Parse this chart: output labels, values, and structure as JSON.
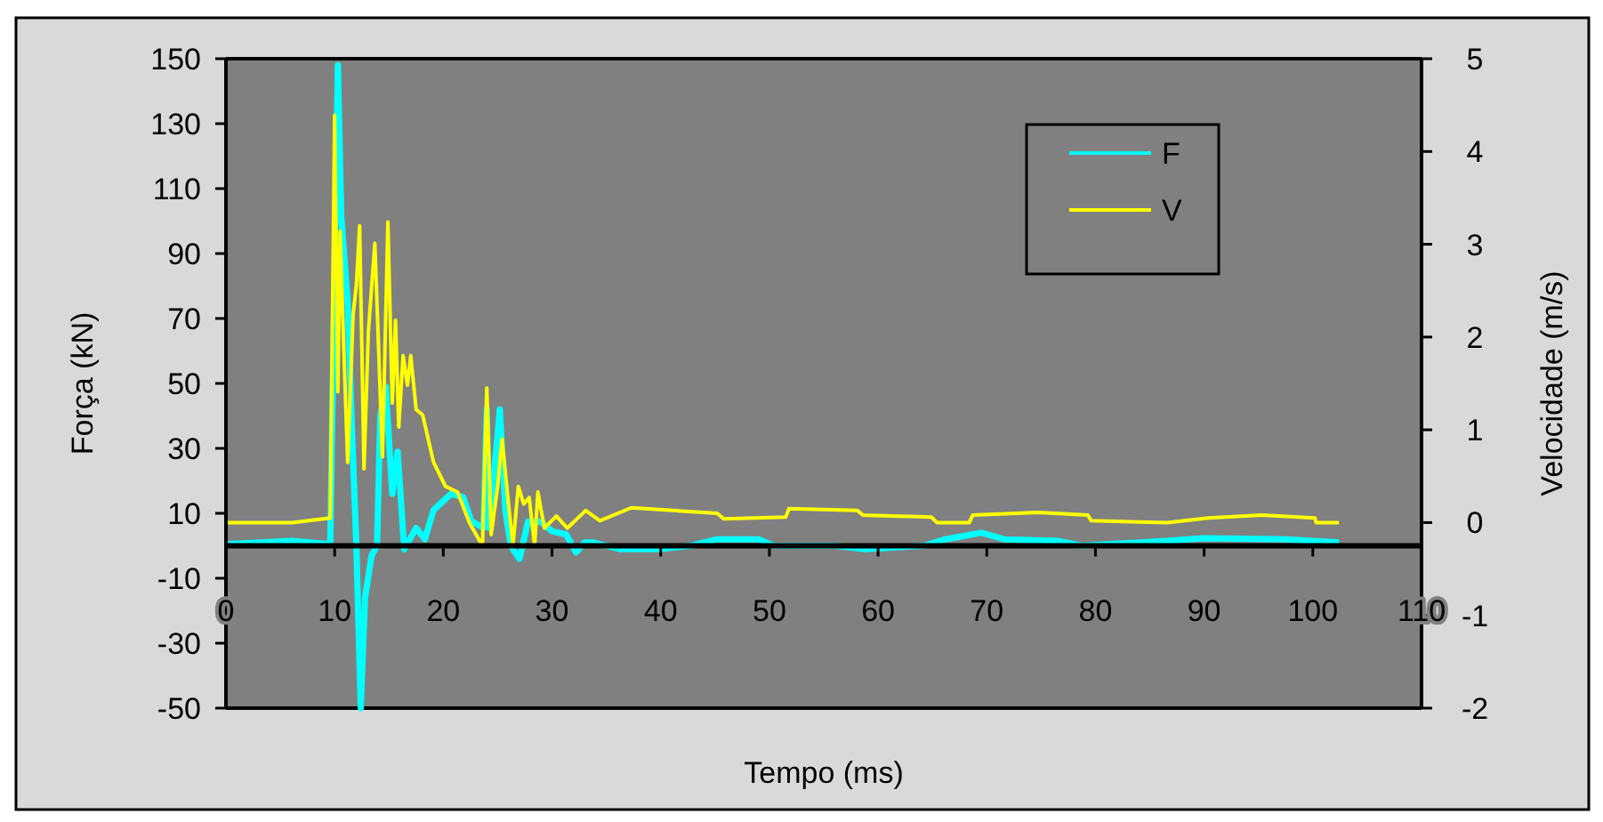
{
  "chart_data": {
    "type": "line",
    "xlabel": "Tempo (ms)",
    "ylabel": "Força (kN)",
    "y2label": "Velocidade (m/s)",
    "xlim": [
      0,
      110
    ],
    "xticks": [
      0,
      10,
      20,
      30,
      40,
      50,
      60,
      70,
      80,
      90,
      100,
      110
    ],
    "ylim": [
      -50,
      150
    ],
    "yticks": [
      -50,
      -30,
      -10,
      10,
      30,
      50,
      70,
      90,
      110,
      130,
      150
    ],
    "y2lim": [
      -2,
      5
    ],
    "y2ticks": [
      -2,
      -1,
      0,
      1,
      2,
      3,
      4,
      5
    ],
    "legend": "top right",
    "marker": "none",
    "line_style": "solid",
    "series": [
      {
        "name": "F",
        "color": "#00ffff",
        "x": [
          0,
          6,
          9.6,
          10.3,
          10.6,
          11.2,
          11.6,
          12.0,
          12.4,
          12.8,
          13.4,
          13.9,
          14.2,
          14.7,
          15.3,
          15.8,
          16.4,
          17.5,
          18.3,
          19.1,
          20.7,
          21.8,
          22.6,
          23.7,
          24.0,
          24.2,
          25.2,
          25.7,
          26.2,
          27.0,
          27.8,
          28.9,
          30,
          31.3,
          32.2,
          33.0,
          33.8,
          36.2,
          39.8,
          42.8,
          45.2,
          49,
          50.4,
          56.1,
          58.8,
          64.2,
          66.2,
          69.5,
          71.6,
          76.5,
          78.7,
          86.6,
          89.9,
          97.5,
          102.4
        ],
        "values": [
          0.5,
          1.5,
          0.5,
          148,
          102,
          75,
          35,
          0,
          -50,
          -16,
          -3,
          0,
          40,
          49,
          16,
          29,
          -1,
          5.5,
          2,
          11,
          16,
          15,
          7.5,
          5.5,
          42,
          5.5,
          42,
          11,
          0,
          -4,
          7.5,
          7.5,
          4.5,
          3.5,
          -2,
          1,
          1,
          -1,
          -1,
          0,
          2,
          2,
          0,
          0,
          -1,
          0,
          2,
          4,
          2,
          1.5,
          0,
          1.5,
          2.3,
          2,
          1
        ]
      },
      {
        "name": "V",
        "color": "#ffff00",
        "axis": "y2",
        "x": [
          0,
          6.1,
          9.6,
          10.0,
          10.3,
          10.5,
          10.9,
          11.2,
          11.7,
          12.0,
          12.3,
          12.7,
          13.1,
          13.7,
          14.4,
          14.9,
          15.3,
          15.6,
          15.9,
          16.3,
          16.7,
          17.0,
          17.5,
          18.1,
          19.1,
          20.2,
          21.3,
          22.4,
          23.6,
          24.0,
          24.4,
          25.0,
          25.4,
          26.0,
          26.4,
          26.9,
          27.4,
          27.9,
          28.4,
          28.7,
          29.3,
          30.4,
          31.4,
          33.1,
          34.4,
          37.3,
          45.2,
          45.8,
          51.5,
          51.8,
          58.1,
          58.6,
          64.9,
          65.4,
          68.4,
          68.7,
          74.7,
          79.3,
          79.6,
          86.6,
          90.4,
          95.3,
          100.2,
          100.3,
          102.4
        ],
        "values": [
          0,
          0,
          0.05,
          4.39,
          1.41,
          3.14,
          1.67,
          0.65,
          2.24,
          2.56,
          3.2,
          0.58,
          2.05,
          3.01,
          0.71,
          3.24,
          1.29,
          2.18,
          1.03,
          1.8,
          1.48,
          1.8,
          1.22,
          1.16,
          0.65,
          0.39,
          0.33,
          0,
          -0.25,
          1.45,
          -0.13,
          0.39,
          0.9,
          0.2,
          -0.25,
          0.39,
          0.2,
          0.27,
          -0.25,
          0.33,
          -0.06,
          0.07,
          -0.06,
          0.13,
          0.02,
          0.16,
          0.1,
          0.04,
          0.06,
          0.15,
          0.13,
          0.08,
          0.06,
          0,
          0,
          0.08,
          0.11,
          0.08,
          0.02,
          0,
          0.05,
          0.08,
          0.05,
          0,
          0
        ]
      }
    ]
  }
}
